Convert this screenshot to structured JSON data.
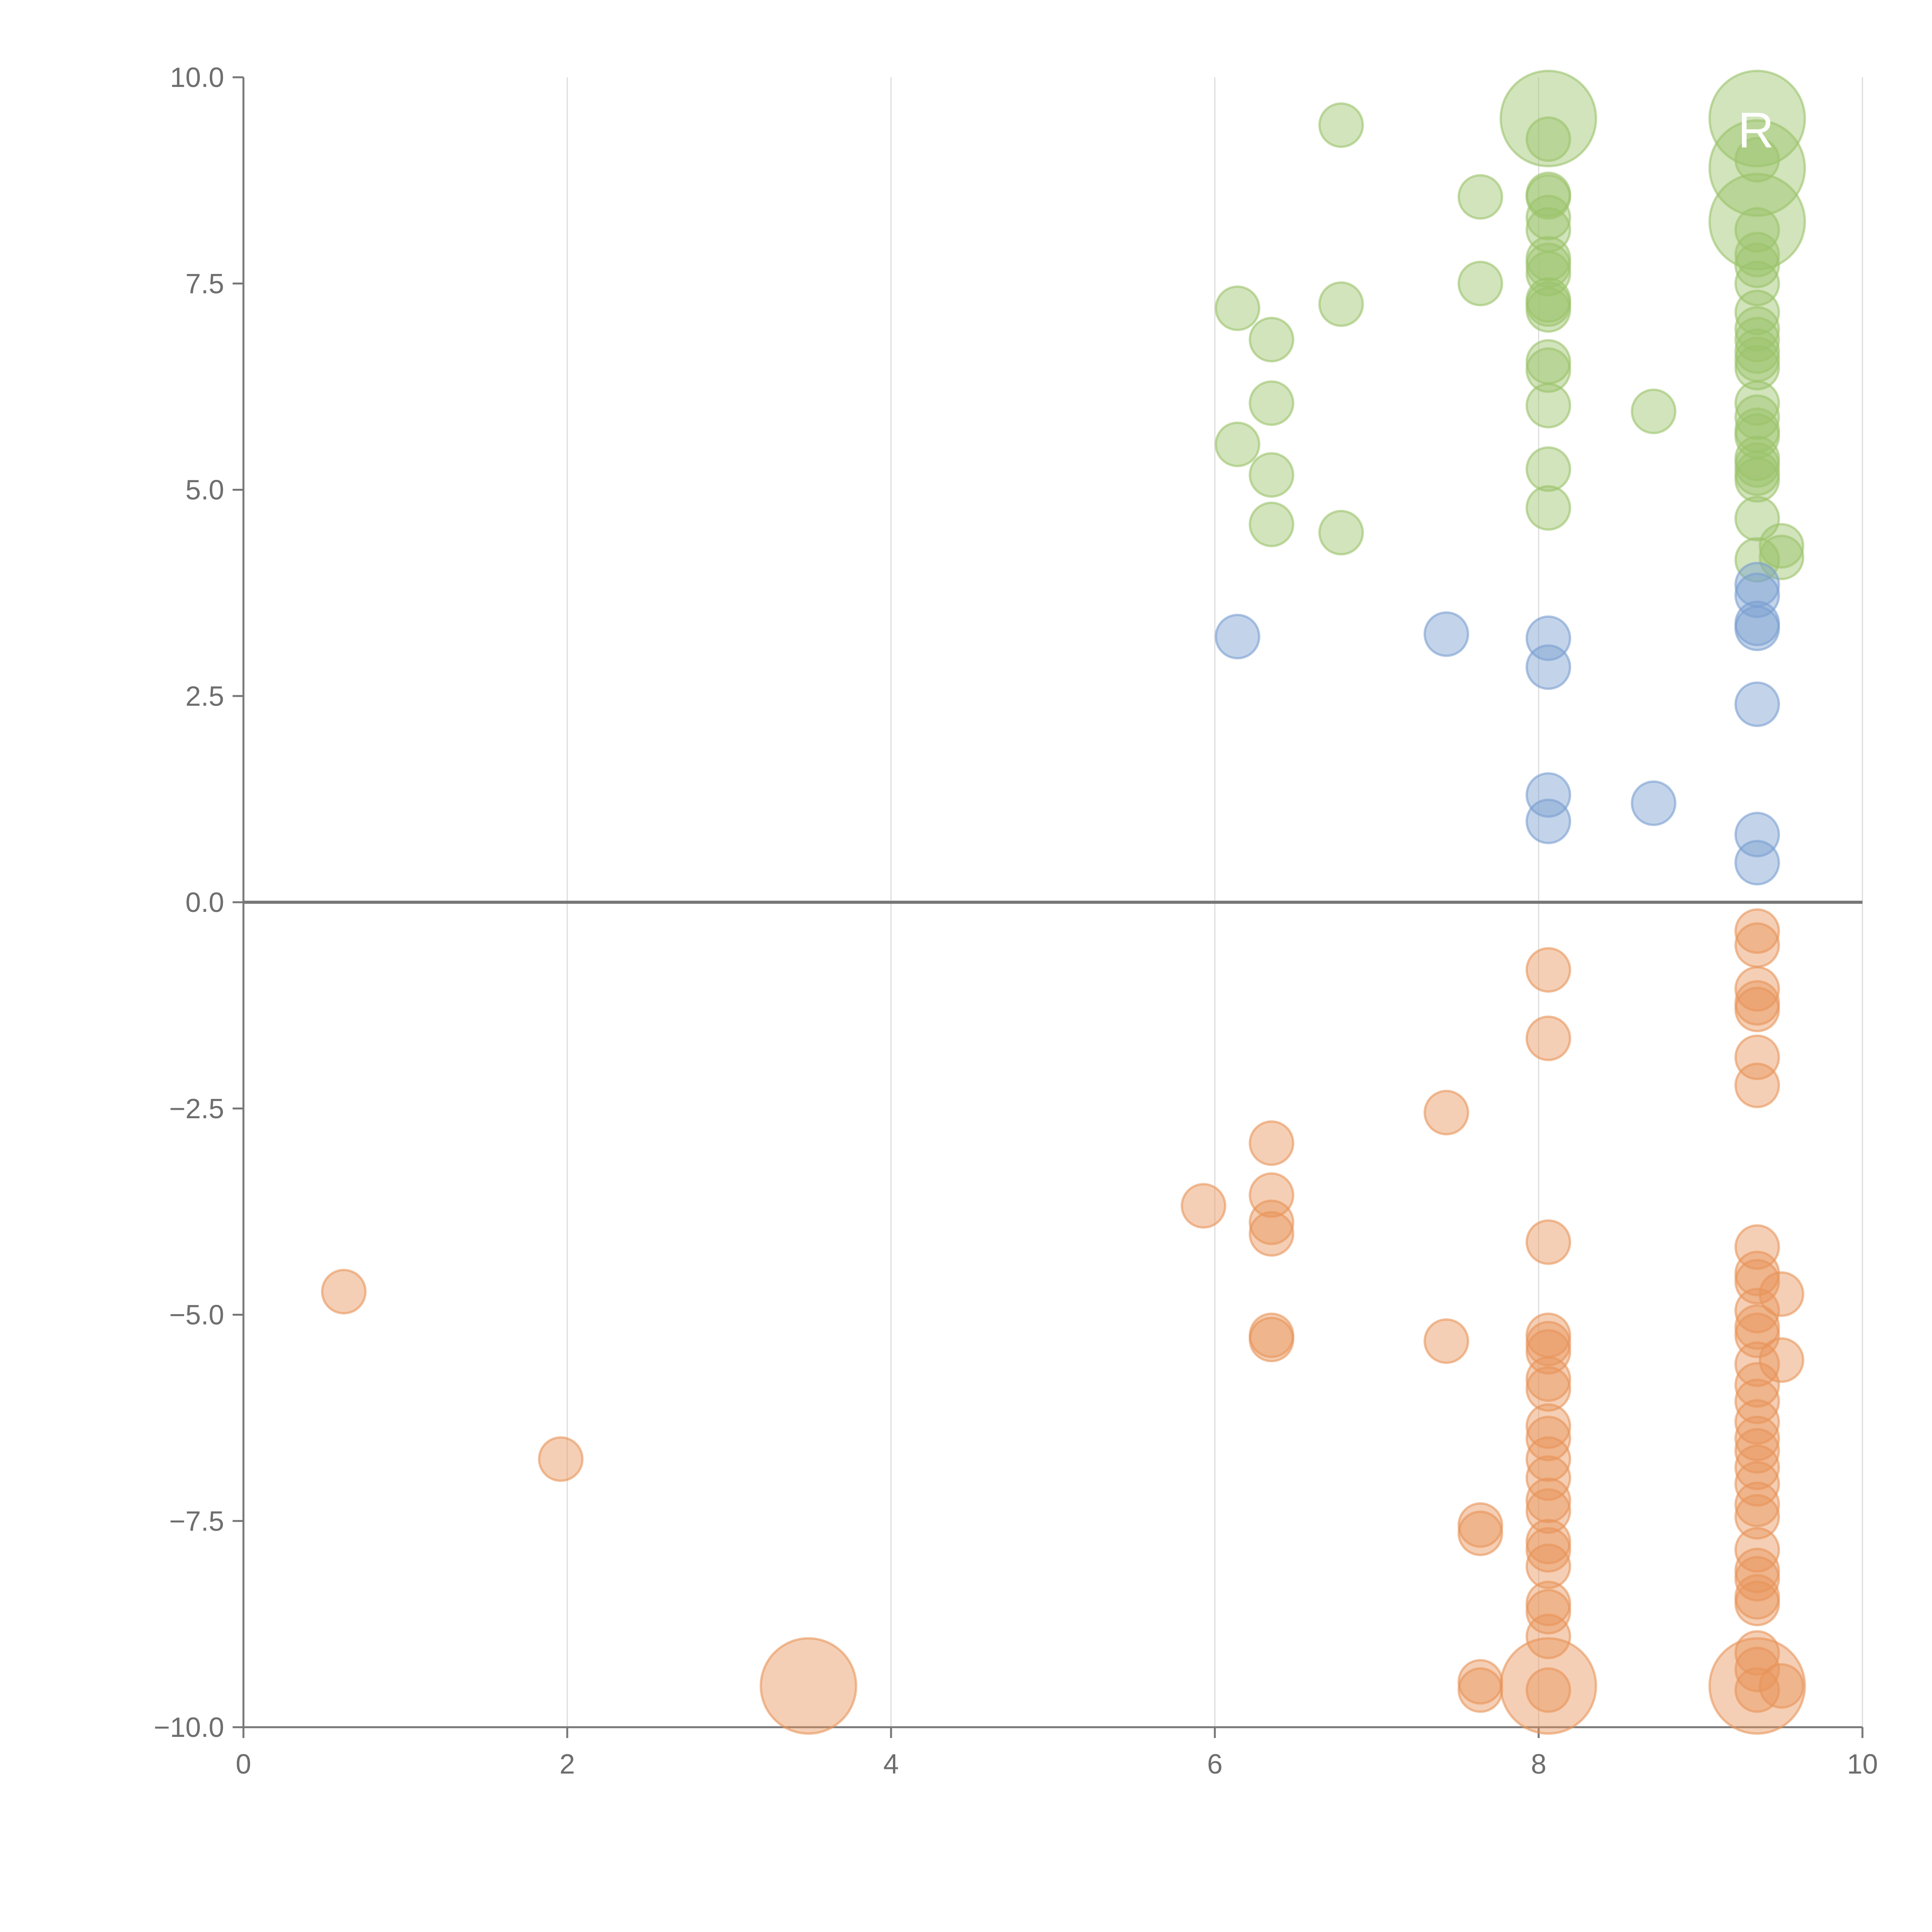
{
  "chart_data": {
    "type": "scatter",
    "title": "",
    "xlabel": "",
    "ylabel": "",
    "xlim": [
      0,
      10
    ],
    "ylim": [
      -10,
      10
    ],
    "grid": "vertical",
    "x_ticks": [
      0,
      2,
      4,
      6,
      8,
      10
    ],
    "x_tick_labels": [
      "0",
      "2",
      "4",
      "6",
      "8",
      "10"
    ],
    "y_ticks": [
      -10,
      -7.5,
      -5,
      -2.5,
      0,
      2.5,
      5,
      7.5,
      10
    ],
    "y_tick_labels": [
      "−10.0",
      "−7.5",
      "−5.0",
      "−2.5",
      "0.0",
      "2.5",
      "5.0",
      "7.5",
      "10.0"
    ],
    "colors": {
      "green": "#9bc36b",
      "blue": "#7a9fd1",
      "orange": "#e8955a"
    },
    "series": [
      {
        "name": "green",
        "color": "#9bc36b",
        "points": [
          {
            "x": 6.78,
            "y": 9.42
          },
          {
            "x": 8.06,
            "y": 9.5,
            "s": 2.2
          },
          {
            "x": 9.35,
            "y": 9.5,
            "s": 2.2
          },
          {
            "x": 8.06,
            "y": 9.25
          },
          {
            "x": 9.35,
            "y": 9.0
          },
          {
            "x": 9.35,
            "y": 8.9,
            "s": 2.2
          },
          {
            "x": 7.64,
            "y": 8.55
          },
          {
            "x": 8.06,
            "y": 8.58
          },
          {
            "x": 8.06,
            "y": 8.55
          },
          {
            "x": 8.06,
            "y": 8.3
          },
          {
            "x": 8.06,
            "y": 8.15
          },
          {
            "x": 9.35,
            "y": 8.25,
            "s": 2.2
          },
          {
            "x": 9.35,
            "y": 8.15
          },
          {
            "x": 9.35,
            "y": 7.85
          },
          {
            "x": 8.06,
            "y": 7.8
          },
          {
            "x": 8.06,
            "y": 7.72
          },
          {
            "x": 8.06,
            "y": 7.62
          },
          {
            "x": 9.35,
            "y": 7.72
          },
          {
            "x": 9.35,
            "y": 7.5
          },
          {
            "x": 7.64,
            "y": 7.5
          },
          {
            "x": 8.06,
            "y": 7.3
          },
          {
            "x": 8.06,
            "y": 7.25
          },
          {
            "x": 8.06,
            "y": 7.18
          },
          {
            "x": 6.78,
            "y": 7.25
          },
          {
            "x": 6.14,
            "y": 7.2
          },
          {
            "x": 9.35,
            "y": 7.15
          },
          {
            "x": 9.35,
            "y": 6.95
          },
          {
            "x": 6.35,
            "y": 6.82
          },
          {
            "x": 9.35,
            "y": 6.82
          },
          {
            "x": 9.35,
            "y": 6.68
          },
          {
            "x": 9.35,
            "y": 6.58
          },
          {
            "x": 8.06,
            "y": 6.55
          },
          {
            "x": 8.06,
            "y": 6.45
          },
          {
            "x": 9.35,
            "y": 6.48
          },
          {
            "x": 6.35,
            "y": 6.05
          },
          {
            "x": 8.06,
            "y": 6.02
          },
          {
            "x": 9.35,
            "y": 6.05
          },
          {
            "x": 8.71,
            "y": 5.95
          },
          {
            "x": 9.35,
            "y": 5.88
          },
          {
            "x": 9.35,
            "y": 5.72
          },
          {
            "x": 9.35,
            "y": 5.65
          },
          {
            "x": 6.14,
            "y": 5.55
          },
          {
            "x": 9.35,
            "y": 5.38
          },
          {
            "x": 9.35,
            "y": 5.3
          },
          {
            "x": 8.06,
            "y": 5.25
          },
          {
            "x": 9.35,
            "y": 5.2
          },
          {
            "x": 9.35,
            "y": 5.12
          },
          {
            "x": 6.35,
            "y": 5.18
          },
          {
            "x": 8.06,
            "y": 4.78
          },
          {
            "x": 9.35,
            "y": 4.65
          },
          {
            "x": 6.35,
            "y": 4.58
          },
          {
            "x": 6.78,
            "y": 4.48
          },
          {
            "x": 9.5,
            "y": 4.32
          },
          {
            "x": 9.5,
            "y": 4.18
          },
          {
            "x": 9.35,
            "y": 4.15
          }
        ]
      },
      {
        "name": "blue",
        "color": "#7a9fd1",
        "points": [
          {
            "x": 9.35,
            "y": 3.85
          },
          {
            "x": 9.35,
            "y": 3.72
          },
          {
            "x": 9.35,
            "y": 3.38
          },
          {
            "x": 9.35,
            "y": 3.32
          },
          {
            "x": 6.14,
            "y": 3.22
          },
          {
            "x": 7.43,
            "y": 3.25
          },
          {
            "x": 8.06,
            "y": 3.2
          },
          {
            "x": 8.06,
            "y": 2.85
          },
          {
            "x": 9.35,
            "y": 2.4
          },
          {
            "x": 8.06,
            "y": 1.3
          },
          {
            "x": 8.71,
            "y": 1.2
          },
          {
            "x": 8.06,
            "y": 0.98
          },
          {
            "x": 9.35,
            "y": 0.82
          },
          {
            "x": 9.35,
            "y": 0.48
          }
        ]
      },
      {
        "name": "orange",
        "color": "#e8955a",
        "points": [
          {
            "x": 9.35,
            "y": -0.35
          },
          {
            "x": 9.35,
            "y": -0.52
          },
          {
            "x": 8.06,
            "y": -0.82
          },
          {
            "x": 9.35,
            "y": -1.05
          },
          {
            "x": 9.35,
            "y": -1.22
          },
          {
            "x": 9.35,
            "y": -1.3
          },
          {
            "x": 8.06,
            "y": -1.65
          },
          {
            "x": 9.35,
            "y": -1.88
          },
          {
            "x": 9.35,
            "y": -2.22
          },
          {
            "x": 7.43,
            "y": -2.55
          },
          {
            "x": 6.35,
            "y": -2.92
          },
          {
            "x": 6.35,
            "y": -3.55
          },
          {
            "x": 5.93,
            "y": -3.68
          },
          {
            "x": 6.35,
            "y": -3.88
          },
          {
            "x": 6.35,
            "y": -4.02
          },
          {
            "x": 8.06,
            "y": -4.12
          },
          {
            "x": 9.35,
            "y": -4.18
          },
          {
            "x": 9.35,
            "y": -4.5
          },
          {
            "x": 9.35,
            "y": -4.6
          },
          {
            "x": 0.62,
            "y": -4.72
          },
          {
            "x": 9.5,
            "y": -4.75
          },
          {
            "x": 9.35,
            "y": -4.95
          },
          {
            "x": 9.35,
            "y": -5.15
          },
          {
            "x": 9.35,
            "y": -5.25
          },
          {
            "x": 8.06,
            "y": -5.25
          },
          {
            "x": 6.35,
            "y": -5.25
          },
          {
            "x": 6.35,
            "y": -5.3
          },
          {
            "x": 7.43,
            "y": -5.32
          },
          {
            "x": 8.06,
            "y": -5.35
          },
          {
            "x": 8.06,
            "y": -5.45
          },
          {
            "x": 9.5,
            "y": -5.55
          },
          {
            "x": 9.35,
            "y": -5.6
          },
          {
            "x": 8.06,
            "y": -5.78
          },
          {
            "x": 9.35,
            "y": -5.85
          },
          {
            "x": 8.06,
            "y": -5.9
          },
          {
            "x": 9.35,
            "y": -6.05
          },
          {
            "x": 9.35,
            "y": -6.3
          },
          {
            "x": 8.06,
            "y": -6.35
          },
          {
            "x": 8.06,
            "y": -6.5
          },
          {
            "x": 9.35,
            "y": -6.5
          },
          {
            "x": 9.35,
            "y": -6.65
          },
          {
            "x": 1.96,
            "y": -6.75
          },
          {
            "x": 8.06,
            "y": -6.75
          },
          {
            "x": 9.35,
            "y": -6.85
          },
          {
            "x": 8.06,
            "y": -6.98
          },
          {
            "x": 9.35,
            "y": -7.05
          },
          {
            "x": 8.06,
            "y": -7.25
          },
          {
            "x": 9.35,
            "y": -7.3
          },
          {
            "x": 8.06,
            "y": -7.38
          },
          {
            "x": 9.35,
            "y": -7.45
          },
          {
            "x": 7.64,
            "y": -7.55
          },
          {
            "x": 7.64,
            "y": -7.65
          },
          {
            "x": 8.06,
            "y": -7.75
          },
          {
            "x": 8.06,
            "y": -7.85
          },
          {
            "x": 9.35,
            "y": -7.85
          },
          {
            "x": 8.06,
            "y": -8.05
          },
          {
            "x": 9.35,
            "y": -8.1
          },
          {
            "x": 9.35,
            "y": -8.2
          },
          {
            "x": 9.35,
            "y": -8.42
          },
          {
            "x": 9.35,
            "y": -8.5
          },
          {
            "x": 8.06,
            "y": -8.5
          },
          {
            "x": 8.06,
            "y": -8.6
          },
          {
            "x": 8.06,
            "y": -8.9
          },
          {
            "x": 9.35,
            "y": -9.1
          },
          {
            "x": 9.35,
            "y": -9.3
          },
          {
            "x": 7.64,
            "y": -9.45
          },
          {
            "x": 7.64,
            "y": -9.55
          },
          {
            "x": 3.49,
            "y": -9.5,
            "s": 2.2
          },
          {
            "x": 8.06,
            "y": -9.5,
            "s": 2.2
          },
          {
            "x": 8.06,
            "y": -9.55
          },
          {
            "x": 9.35,
            "y": -9.5,
            "s": 2.2
          },
          {
            "x": 9.35,
            "y": -9.55
          },
          {
            "x": 9.5,
            "y": -9.5
          }
        ]
      }
    ],
    "annotations": [
      {
        "text": "R",
        "x": 9.23,
        "y": 9.15
      }
    ]
  }
}
